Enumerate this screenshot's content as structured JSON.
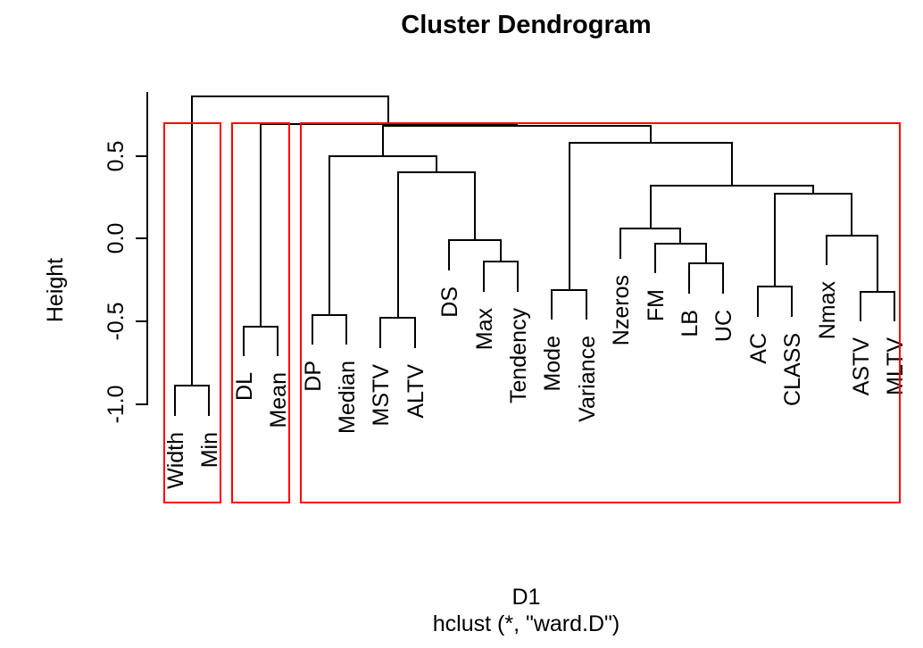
{
  "title": "Cluster Dendrogram",
  "y_axis": {
    "label": "Height",
    "ticks": [
      {
        "label": "0.5",
        "value": 0.5
      },
      {
        "label": "0.0",
        "value": 0.0
      },
      {
        "label": "-0.5",
        "value": -0.5
      },
      {
        "label": "-1.0",
        "value": -1.0
      }
    ]
  },
  "caption": {
    "line1": "D1",
    "line2": "hclust (*, \"ward.D\")"
  },
  "colors": {
    "line": "#000000",
    "text": "#000000",
    "cluster_box": "#ff0000",
    "background": "#ffffff"
  },
  "chart_data": {
    "type": "dendrogram",
    "title": "Cluster Dendrogram",
    "xlabel": "D1",
    "ylabel": "Height",
    "method_note": "hclust (*, \"ward.D\")",
    "ylim": [
      -1.0,
      0.9
    ],
    "hang": 0.1,
    "leaves": [
      "Width",
      "Min",
      "DL",
      "Mean",
      "DP",
      "Median",
      "MSTV",
      "ALTV",
      "DS",
      "Max",
      "Tendency",
      "Mode",
      "Variance",
      "Nzeros",
      "FM",
      "LB",
      "UC",
      "AC",
      "CLASS",
      "Nmax",
      "ASTV",
      "MLTV"
    ],
    "merges": [
      {
        "left": "Width",
        "right": "Min",
        "height": -0.89
      },
      {
        "left": "DL",
        "right": "Mean",
        "height": -0.53
      },
      {
        "left": "DP",
        "right": "Median",
        "height": -0.46
      },
      {
        "left": "MSTV",
        "right": "ALTV",
        "height": -0.48
      },
      {
        "left": "Max",
        "right": "Tendency",
        "height": -0.14
      },
      {
        "left": "DS",
        "right": 4,
        "height": -0.01
      },
      {
        "left": 3,
        "right": 5,
        "height": 0.4
      },
      {
        "left": 2,
        "right": 6,
        "height": 0.5
      },
      {
        "left": "Mode",
        "right": "Variance",
        "height": -0.31
      },
      {
        "left": "LB",
        "right": "UC",
        "height": -0.15
      },
      {
        "left": "FM",
        "right": 9,
        "height": -0.03
      },
      {
        "left": "Nzeros",
        "right": 10,
        "height": 0.06
      },
      {
        "left": "AC",
        "right": "CLASS",
        "height": -0.29
      },
      {
        "left": "ASTV",
        "right": "MLTV",
        "height": -0.32
      },
      {
        "left": "Nmax",
        "right": 13,
        "height": 0.02
      },
      {
        "left": 12,
        "right": 14,
        "height": 0.27
      },
      {
        "left": 11,
        "right": 15,
        "height": 0.32
      },
      {
        "left": 8,
        "right": 16,
        "height": 0.58
      },
      {
        "left": 7,
        "right": 17,
        "height": 0.68
      },
      {
        "left": 1,
        "right": 18,
        "height": 0.69
      },
      {
        "left": 0,
        "right": 19,
        "height": 0.86
      }
    ],
    "clusters": [
      {
        "from": "Width",
        "to": "Min"
      },
      {
        "from": "DL",
        "to": "Mean"
      },
      {
        "from": "DP",
        "to": "MLTV"
      }
    ]
  }
}
